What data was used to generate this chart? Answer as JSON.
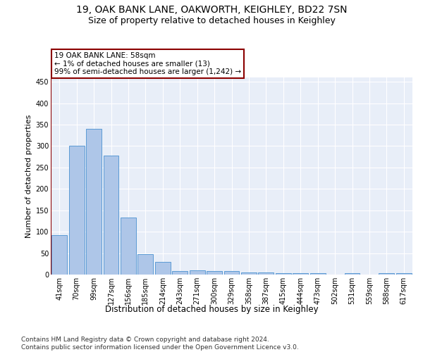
{
  "title1": "19, OAK BANK LANE, OAKWORTH, KEIGHLEY, BD22 7SN",
  "title2": "Size of property relative to detached houses in Keighley",
  "xlabel": "Distribution of detached houses by size in Keighley",
  "ylabel": "Number of detached properties",
  "categories": [
    "41sqm",
    "70sqm",
    "99sqm",
    "127sqm",
    "156sqm",
    "185sqm",
    "214sqm",
    "243sqm",
    "271sqm",
    "300sqm",
    "329sqm",
    "358sqm",
    "387sqm",
    "415sqm",
    "444sqm",
    "473sqm",
    "502sqm",
    "531sqm",
    "559sqm",
    "588sqm",
    "617sqm"
  ],
  "values": [
    92,
    300,
    340,
    278,
    133,
    47,
    30,
    9,
    10,
    9,
    9,
    5,
    5,
    4,
    4,
    4,
    0,
    3,
    0,
    3,
    3
  ],
  "bar_color": "#aec6e8",
  "bar_edge_color": "#5b9bd5",
  "annotation_box_text": "19 OAK BANK LANE: 58sqm\n← 1% of detached houses are smaller (13)\n99% of semi-detached houses are larger (1,242) →",
  "footer": "Contains HM Land Registry data © Crown copyright and database right 2024.\nContains public sector information licensed under the Open Government Licence v3.0.",
  "ylim": [
    0,
    460
  ],
  "plot_bg_color": "#e8eef8",
  "grid_color": "#ffffff",
  "title1_fontsize": 10,
  "title2_fontsize": 9,
  "xlabel_fontsize": 8.5,
  "ylabel_fontsize": 8,
  "tick_fontsize": 7,
  "footer_fontsize": 6.5,
  "ann_fontsize": 7.5
}
